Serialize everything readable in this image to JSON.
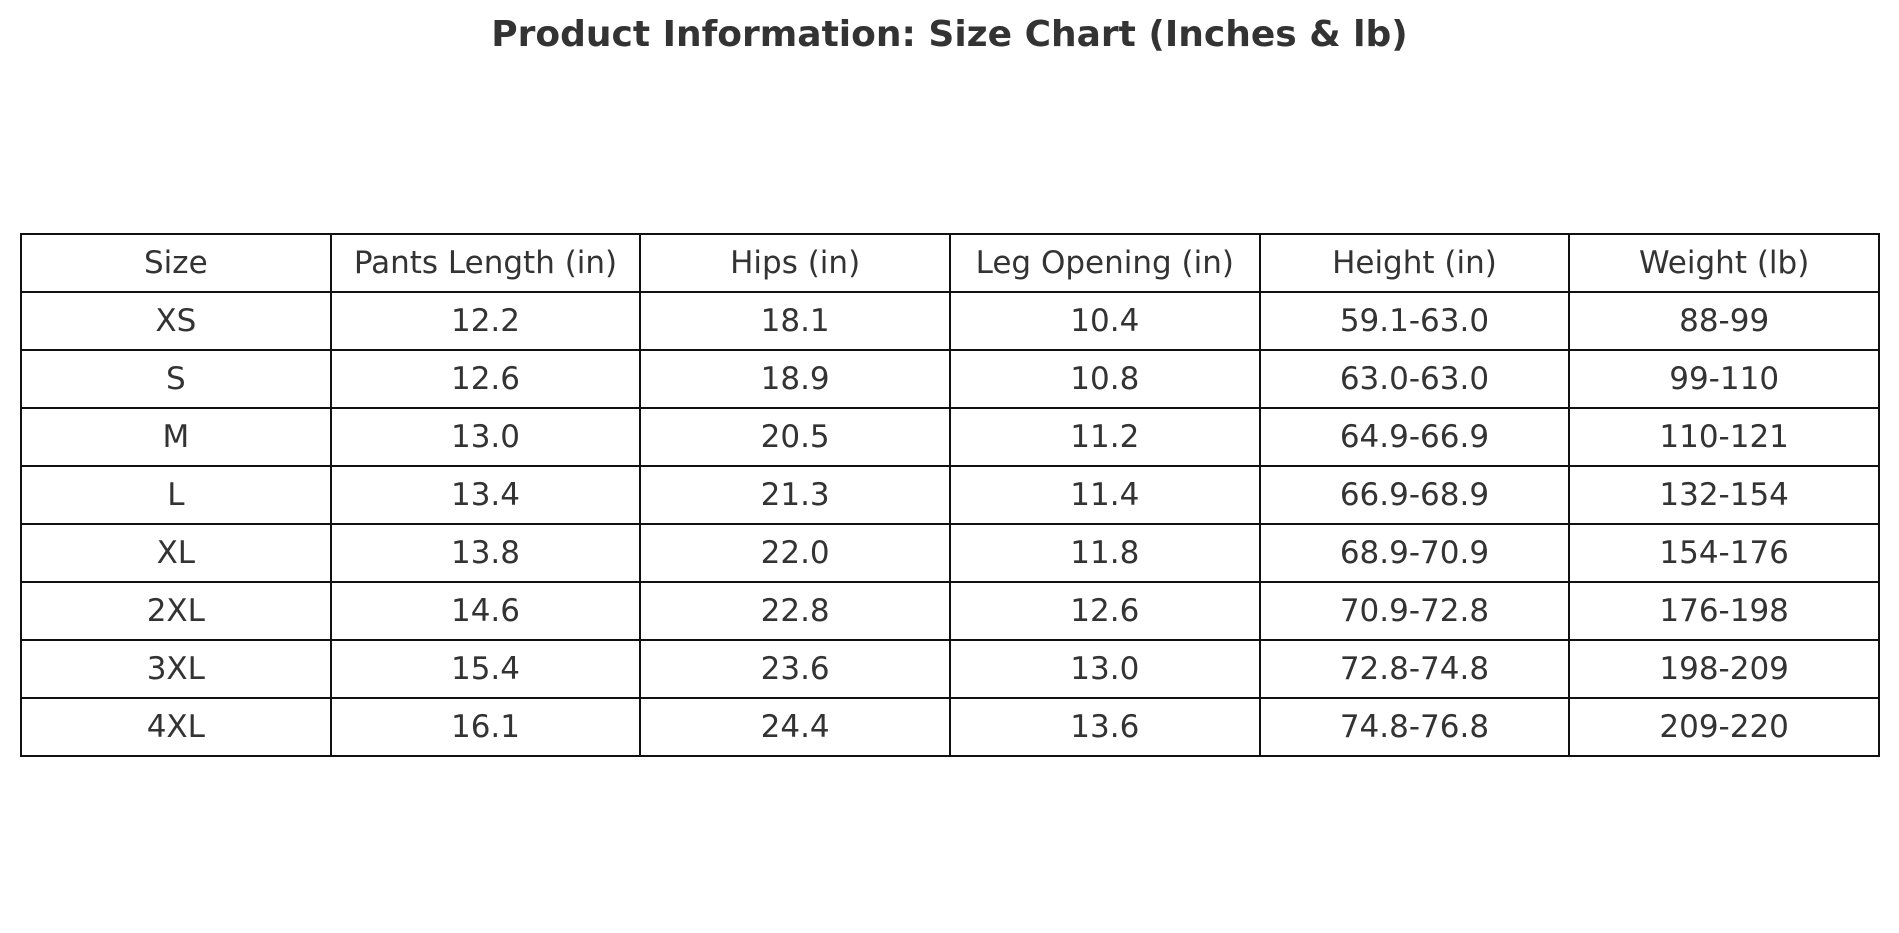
{
  "title": "Product Information: Size Chart (Inches & lb)",
  "table": {
    "header": [
      "Size",
      "Pants Length (in)",
      "Hips (in)",
      "Leg Opening (in)",
      "Height (in)",
      "Weight (lb)"
    ],
    "rows": [
      [
        "XS",
        "12.2",
        "18.1",
        "10.4",
        "59.1-63.0",
        "88-99"
      ],
      [
        "S",
        "12.6",
        "18.9",
        "10.8",
        "63.0-63.0",
        "99-110"
      ],
      [
        "M",
        "13.0",
        "20.5",
        "11.2",
        "64.9-66.9",
        "110-121"
      ],
      [
        "L",
        "13.4",
        "21.3",
        "11.4",
        "66.9-68.9",
        "132-154"
      ],
      [
        "XL",
        "13.8",
        "22.0",
        "11.8",
        "68.9-70.9",
        "154-176"
      ],
      [
        "2XL",
        "14.6",
        "22.8",
        "12.6",
        "70.9-72.8",
        "176-198"
      ],
      [
        "3XL",
        "15.4",
        "23.6",
        "13.0",
        "72.8-74.8",
        "198-209"
      ],
      [
        "4XL",
        "16.1",
        "24.4",
        "13.6",
        "74.8-76.8",
        "209-220"
      ]
    ]
  }
}
